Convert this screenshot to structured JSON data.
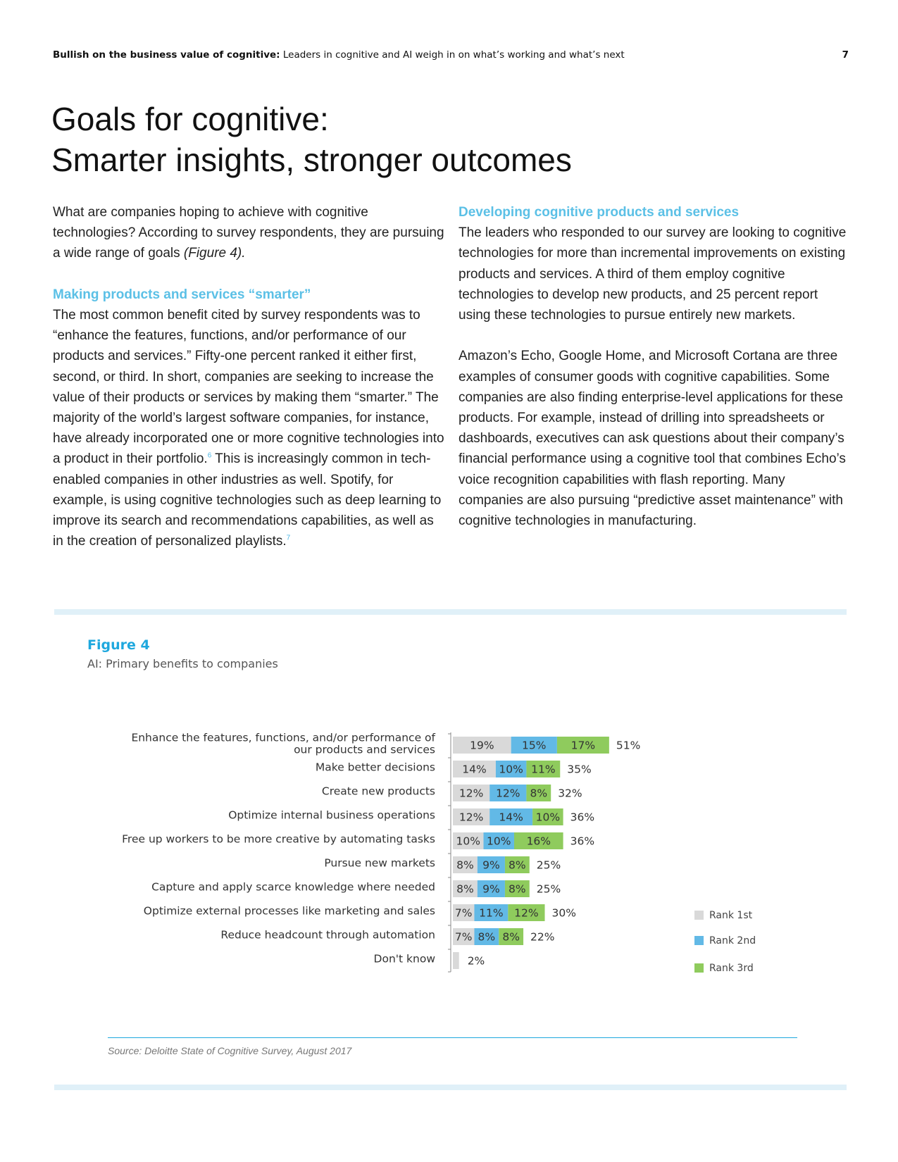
{
  "header": {
    "bold": "Bullish on the business value of cognitive:",
    "rest": " Leaders in cognitive and AI weigh in on what’s working and what’s next",
    "page_number": "7"
  },
  "title": {
    "line1": "Goals for cognitive:",
    "line2": "Smarter insights, stronger outcomes"
  },
  "left": {
    "intro": "What are companies hoping to achieve with cognitive technologies? According to survey respondents, they are pursuing a wide range of goals ",
    "intro_ref": "(Figure 4).",
    "subhead": "Making products and services “smarter”",
    "body1": "The most common benefit cited by survey respondents was to “enhance the features, functions, and/or performance of our products and services.” Fifty-one percent ranked it either first, second, or third. In short, companies are seeking to increase the value of their products or services by making them “smarter.” The majority of the world’s largest software companies, for instance, have already incorporated one or more cognitive technologies into a product in their portfolio.",
    "note1": "6",
    "body2": " This is increasingly common in tech-enabled companies in other industries as well. Spotify, for example, is using cognitive technologies such as deep learning to improve its search and recommendations capabilities, as well as in the creation of personalized playlists.",
    "note2": "7"
  },
  "right": {
    "subhead": "Developing cognitive products and services",
    "para1": "The leaders who responded to our survey are looking to cognitive technologies for more than incremental improvements on existing products and services. A third of them employ cognitive technologies to develop new products, and 25 percent report using these technologies to pursue entirely new markets.",
    "para2": "Amazon’s Echo, Google Home, and Microsoft Cortana are three examples of consumer goods with cognitive capabilities. Some companies are also finding enterprise-level applications for these products. For example, instead of drilling into spreadsheets or dashboards, executives can ask questions about their company’s financial performance using a cognitive tool that combines Echo’s voice recognition capabilities with flash reporting. Many companies are also pursuing “predictive asset maintenance” with cognitive technologies in manufacturing."
  },
  "figure": {
    "label": "Figure 4",
    "subtitle": "AI: Primary benefits to companies",
    "source": "Source: Deloitte State of Cognitive Survey, August 2017"
  },
  "colors": {
    "rank1": "#d9d9d9",
    "rank2": "#62b9e6",
    "rank3": "#8fcb5d",
    "accent": "#1ea8de"
  },
  "chart_data": {
    "type": "bar",
    "orientation": "horizontal",
    "stacked": true,
    "title": "AI: Primary benefits to companies",
    "categories": [
      [
        "Enhance the features, functions, and/or performance of",
        "our products and services"
      ],
      [
        "Make better decisions"
      ],
      [
        "Create new products"
      ],
      [
        "Optimize internal business operations"
      ],
      [
        "Free up workers to be more creative by automating tasks"
      ],
      [
        "Pursue new markets"
      ],
      [
        "Capture and apply scarce knowledge where needed"
      ],
      [
        "Optimize external processes like marketing and sales"
      ],
      [
        "Reduce headcount through automation"
      ],
      [
        "Don't know"
      ]
    ],
    "series": [
      {
        "name": "Rank 1st",
        "values": [
          19,
          14,
          12,
          12,
          10,
          8,
          8,
          7,
          7,
          2
        ]
      },
      {
        "name": "Rank 2nd",
        "values": [
          15,
          10,
          12,
          14,
          10,
          9,
          9,
          11,
          8,
          0
        ]
      },
      {
        "name": "Rank 3rd",
        "values": [
          17,
          11,
          8,
          10,
          16,
          8,
          8,
          12,
          8,
          0
        ]
      }
    ],
    "totals": [
      51,
      35,
      32,
      36,
      36,
      25,
      25,
      30,
      22,
      2
    ],
    "value_suffix": "%",
    "legend": [
      "Rank 1st",
      "Rank 2nd",
      "Rank 3rd"
    ],
    "legend_position": "right"
  }
}
